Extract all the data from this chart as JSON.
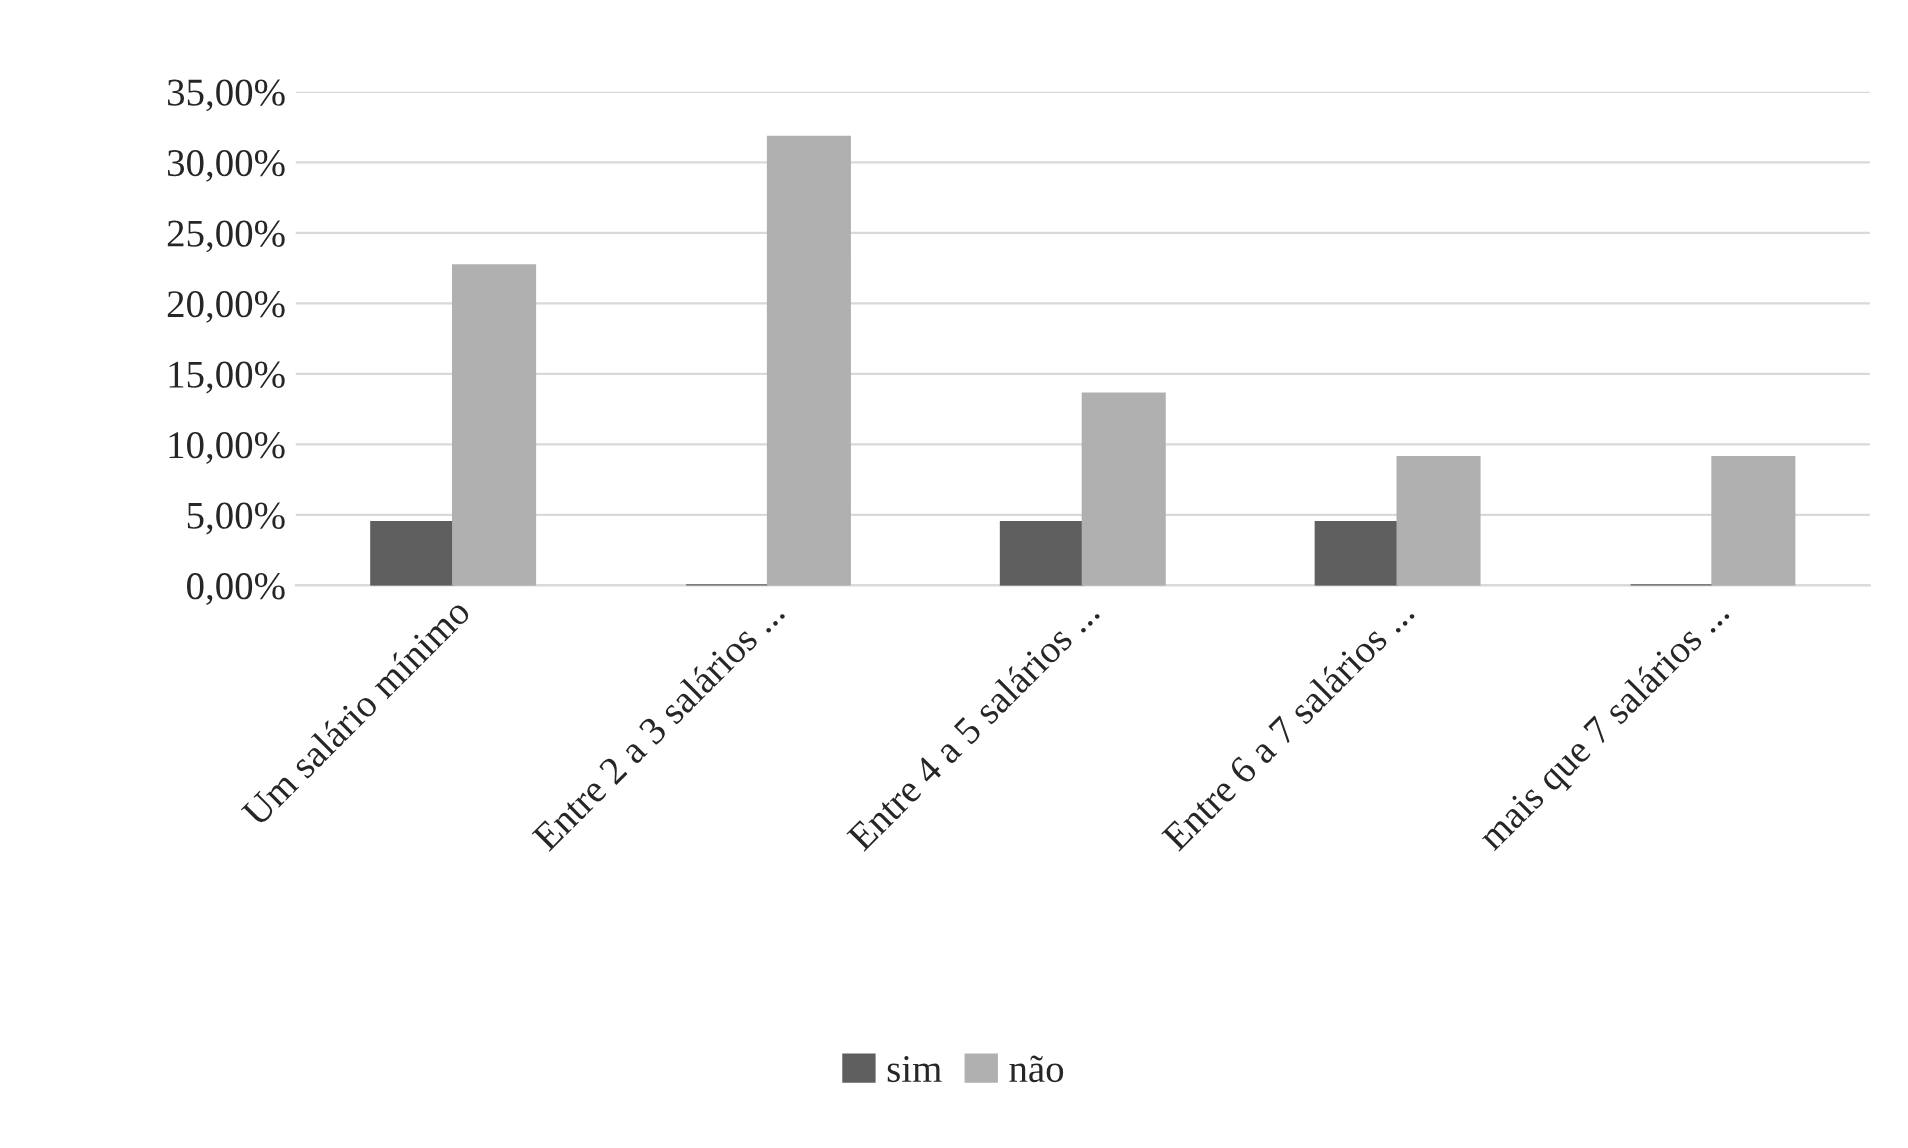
{
  "chart_data": {
    "type": "bar",
    "categories": [
      "Um salário mínimo",
      "Entre 2 a 3 salários ...",
      "Entre 4 a 5 salários ...",
      "Entre 6 a 7 salários ...",
      "mais que 7 salários ..."
    ],
    "series": [
      {
        "name": "sim",
        "color": "#5f5f5f",
        "values": [
          4.5,
          0,
          4.5,
          4.5,
          0
        ]
      },
      {
        "name": "não",
        "color": "#b0b0b0",
        "values": [
          22.7,
          31.8,
          13.6,
          9.1,
          9.1
        ]
      }
    ],
    "ylim": [
      0,
      35
    ],
    "yticks": [
      {
        "value": 0,
        "label": "0,00%"
      },
      {
        "value": 5,
        "label": "5,00%"
      },
      {
        "value": 10,
        "label": "10,00%"
      },
      {
        "value": 15,
        "label": "15,00%"
      },
      {
        "value": 20,
        "label": "20,00%"
      },
      {
        "value": 25,
        "label": "25,00%"
      },
      {
        "value": 30,
        "label": "30,00%"
      },
      {
        "value": 35,
        "label": "35,00%"
      }
    ],
    "grid": "y",
    "legend": "bottom"
  }
}
